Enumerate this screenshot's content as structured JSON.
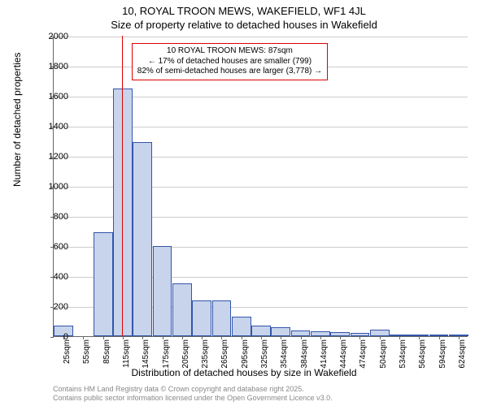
{
  "chart": {
    "type": "histogram",
    "title_main": "10, ROYAL TROON MEWS, WAKEFIELD, WF1 4JL",
    "title_sub": "Size of property relative to detached houses in Wakefield",
    "ylabel": "Number of detached properties",
    "xlabel": "Distribution of detached houses by size in Wakefield",
    "background_color": "#ffffff",
    "grid_color": "#cccccc",
    "bar_fill": "#c8d4ec",
    "bar_border": "#3355aa",
    "marker_color": "#dd0000",
    "ylim": [
      0,
      2000
    ],
    "ytick_step": 200,
    "x_categories": [
      "25sqm",
      "55sqm",
      "85sqm",
      "115sqm",
      "145sqm",
      "175sqm",
      "205sqm",
      "235sqm",
      "265sqm",
      "295sqm",
      "325sqm",
      "354sqm",
      "384sqm",
      "414sqm",
      "444sqm",
      "474sqm",
      "504sqm",
      "534sqm",
      "564sqm",
      "594sqm",
      "624sqm"
    ],
    "values": [
      70,
      0,
      690,
      1650,
      1290,
      600,
      350,
      240,
      240,
      130,
      70,
      60,
      40,
      30,
      25,
      20,
      45,
      10,
      5,
      12,
      5
    ],
    "marker_x_index": 2.95,
    "annotation": {
      "line1": "10 ROYAL TROON MEWS: 87sqm",
      "line2": "← 17% of detached houses are smaller (799)",
      "line3": "82% of semi-detached houses are larger (3,778) →"
    },
    "attribution": {
      "line1": "Contains HM Land Registry data © Crown copyright and database right 2025.",
      "line2": "Contains public sector information licensed under the Open Government Licence v3.0."
    }
  }
}
